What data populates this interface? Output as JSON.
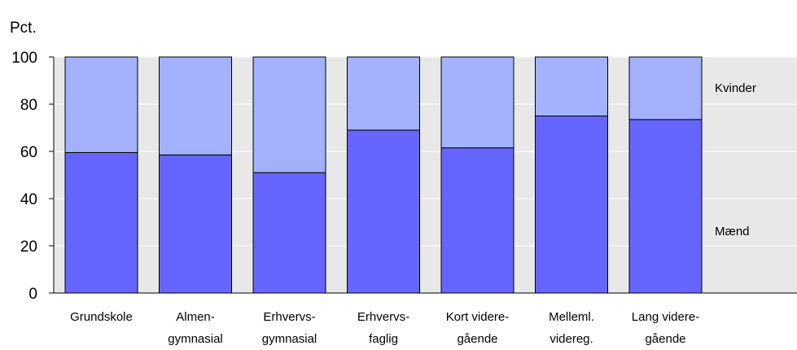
{
  "chart_data": {
    "type": "bar",
    "stacked": true,
    "title": "",
    "ylabel": "Pct.",
    "xlabel": "",
    "ylim": [
      0,
      100
    ],
    "yticks": [
      0,
      20,
      40,
      60,
      80,
      100
    ],
    "categories": [
      [
        "Grundskole"
      ],
      [
        "Almen-",
        "gymnasial"
      ],
      [
        "Erhvervs-",
        "gymnasial"
      ],
      [
        "Erhvervs-",
        "faglig"
      ],
      [
        "Kort videre-",
        "gående"
      ],
      [
        "Melleml.",
        "videreg."
      ],
      [
        "Lang videre-",
        "gående"
      ]
    ],
    "series": [
      {
        "name": "Mænd",
        "color": "#6666ff",
        "values": [
          59.5,
          58.5,
          51,
          69,
          61.5,
          75,
          73.5
        ]
      },
      {
        "name": "Kvinder",
        "color": "#a3b1ff",
        "values": [
          40.5,
          41.5,
          49,
          31,
          38.5,
          25,
          26.5
        ]
      }
    ],
    "plot_background": "#e8e8e8",
    "legend": "inline-right"
  }
}
